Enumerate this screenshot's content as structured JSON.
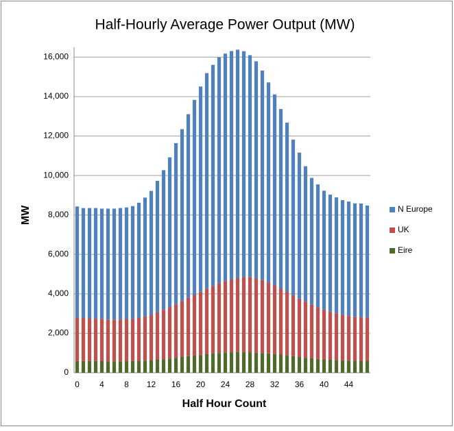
{
  "chart_data": {
    "type": "stacked_bar",
    "title": "Half-Hourly Average Power Output (MW)",
    "x_label": "Half Hour Count",
    "y_label": "MW",
    "categories": [
      0,
      null,
      null,
      null,
      4,
      null,
      null,
      null,
      8,
      null,
      null,
      null,
      12,
      null,
      null,
      null,
      16,
      null,
      null,
      null,
      20,
      null,
      null,
      null,
      24,
      null,
      null,
      null,
      28,
      null,
      null,
      null,
      32,
      null,
      null,
      null,
      36,
      null,
      null,
      null,
      40,
      null,
      null,
      null,
      44,
      null,
      null,
      null
    ],
    "series": [
      {
        "name": "Eire",
        "color": "#4f6a2b",
        "values": [
          600,
          600,
          600,
          600,
          590,
          580,
          580,
          580,
          590,
          600,
          610,
          620,
          640,
          660,
          690,
          720,
          760,
          800,
          840,
          880,
          910,
          940,
          970,
          1000,
          1020,
          1040,
          1050,
          1050,
          1040,
          1020,
          1000,
          980,
          950,
          920,
          880,
          840,
          800,
          760,
          730,
          700,
          680,
          660,
          640,
          630,
          620,
          620,
          610,
          610
        ]
      },
      {
        "name": "UK",
        "color": "#c0504d",
        "values": [
          2200,
          2180,
          2160,
          2140,
          2130,
          2120,
          2120,
          2120,
          2120,
          2130,
          2170,
          2230,
          2310,
          2400,
          2500,
          2610,
          2720,
          2840,
          2960,
          3080,
          3200,
          3320,
          3430,
          3530,
          3620,
          3700,
          3760,
          3800,
          3800,
          3770,
          3700,
          3600,
          3480,
          3350,
          3220,
          3090,
          2960,
          2840,
          2720,
          2620,
          2520,
          2440,
          2370,
          2310,
          2260,
          2220,
          2200,
          2190
        ]
      },
      {
        "name": "N Europe",
        "color": "#4f81bd",
        "values": [
          5630,
          5570,
          5590,
          5610,
          5600,
          5620,
          5620,
          5650,
          5670,
          5720,
          5840,
          6030,
          6270,
          6670,
          7080,
          7590,
          8160,
          8710,
          9310,
          9870,
          10400,
          10930,
          11210,
          11460,
          11540,
          11570,
          11570,
          11450,
          11260,
          11000,
          10620,
          10140,
          9680,
          9100,
          8580,
          7890,
          7400,
          6870,
          6430,
          6230,
          6030,
          5930,
          5880,
          5810,
          5800,
          5750,
          5770,
          5680
        ]
      }
    ],
    "ylim": [
      0,
      16500
    ],
    "yticks": [
      0,
      {
        "value": 2000,
        "label": "2,000"
      },
      {
        "value": 4000,
        "label": "4,000"
      },
      {
        "value": 6000,
        "label": "6,000"
      },
      {
        "value": 8000,
        "label": "8,000"
      },
      {
        "value": 10000,
        "label": "10,000"
      },
      {
        "value": 12000,
        "label": "12,000"
      },
      {
        "value": 14000,
        "label": "14,000"
      },
      {
        "value": 16000,
        "label": "16,000"
      }
    ],
    "grid": true,
    "legend": "right"
  }
}
